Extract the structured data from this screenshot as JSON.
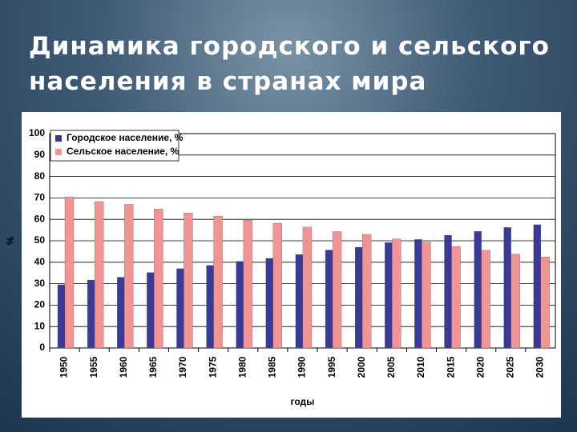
{
  "title_lines": [
    "Динамика городского и сельского",
    "населения в странах мира"
  ],
  "chart_data": {
    "type": "bar",
    "categories": [
      "1950",
      "1955",
      "1960",
      "1965",
      "1970",
      "1975",
      "1980",
      "1985",
      "1990",
      "1995",
      "2000",
      "2005",
      "2010",
      "2015",
      "2020",
      "2025",
      "2030"
    ],
    "series": [
      {
        "name": "Городское население, %",
        "color": "#3a3a96",
        "values": [
          29.5,
          31.7,
          33,
          35.2,
          37,
          38.5,
          40.4,
          41.8,
          43.6,
          45.7,
          47,
          49.2,
          50.6,
          52.6,
          54.4,
          56.2,
          57.5
        ]
      },
      {
        "name": "Сельское население, %",
        "color": "#f29494",
        "values": [
          70.5,
          68.3,
          67,
          64.8,
          63,
          61.5,
          59.6,
          58.2,
          56.4,
          54.3,
          53,
          50.8,
          49.4,
          47.4,
          45.6,
          43.8,
          42.5
        ]
      }
    ],
    "ylim": [
      0,
      100
    ],
    "yticks": [
      0,
      10,
      20,
      30,
      40,
      50,
      60,
      70,
      80,
      90,
      100
    ],
    "y_label": "%",
    "x_label": "годы",
    "grid": true,
    "legend": "top-left"
  }
}
